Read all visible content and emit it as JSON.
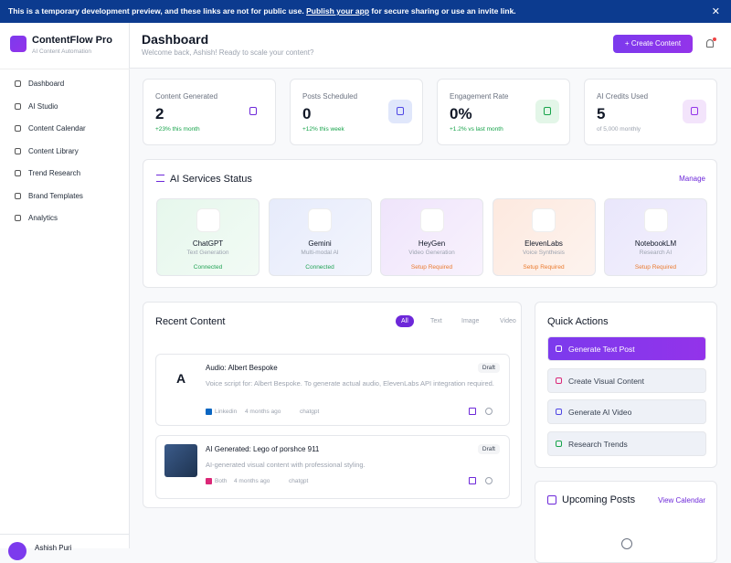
{
  "banner": {
    "text": "This is a temporary development preview, and these links are not for public use.",
    "link": "Publish your app",
    "text_after": "for secure sharing or use an invite link."
  },
  "sidebar": {
    "brand": "ContentFlow Pro",
    "tagline": "AI Content Automation",
    "nav": [
      "Dashboard",
      "AI Studio",
      "Content Calendar",
      "Content Library",
      "Trend Research",
      "Brand Templates",
      "Analytics"
    ],
    "user": "Ashish Puri"
  },
  "header": {
    "title": "Dashboard",
    "subtitle": "Welcome back, Ashish! Ready to scale your content?",
    "button": "Create Content"
  },
  "stats": [
    {
      "label": "Content Generated",
      "value": "2",
      "note": "+23% this month"
    },
    {
      "label": "Posts Scheduled",
      "value": "0",
      "note": "+12% this week"
    },
    {
      "label": "Engagement Rate",
      "value": "0%",
      "note": "+1.2% vs last month"
    },
    {
      "label": "AI Credits Used",
      "value": "5",
      "note": "of 5,000 monthly"
    }
  ],
  "services": {
    "title": "AI Services Status",
    "action": "Manage",
    "items": [
      {
        "name": "ChatGPT",
        "desc": "Text Generation",
        "status": "Connected"
      },
      {
        "name": "Gemini",
        "desc": "Multi-modal AI",
        "status": "Connected"
      },
      {
        "name": "HeyGen",
        "desc": "Video Generation",
        "status": "Setup Required"
      },
      {
        "name": "ElevenLabs",
        "desc": "Voice Synthesis",
        "status": "Setup Required"
      },
      {
        "name": "NotebookLM",
        "desc": "Research AI",
        "status": "Setup Required"
      }
    ]
  },
  "recent": {
    "title": "Recent Content",
    "tabs": [
      "All",
      "Text",
      "Image",
      "Video"
    ],
    "items": [
      {
        "avatar": "A",
        "title": "Audio: Albert Bespoke",
        "badge": "Draft",
        "desc": "Voice script for: Albert Bespoke. To generate actual audio, ElevenLabs API integration required.",
        "platform": "Linkedin",
        "time": "4 months ago",
        "model": "chatgpt"
      },
      {
        "title": "AI Generated: Lego of porshce 911",
        "badge": "Draft",
        "desc": "AI-generated visual content with professional styling.",
        "platform": "Both",
        "time": "4 months ago",
        "model": "chatgpt"
      }
    ]
  },
  "quick_actions": {
    "title": "Quick Actions",
    "items": [
      "Generate Text Post",
      "Create Visual Content",
      "Generate AI Video",
      "Research Trends"
    ]
  },
  "upcoming": {
    "title": "Upcoming Posts",
    "action": "View Calendar"
  }
}
